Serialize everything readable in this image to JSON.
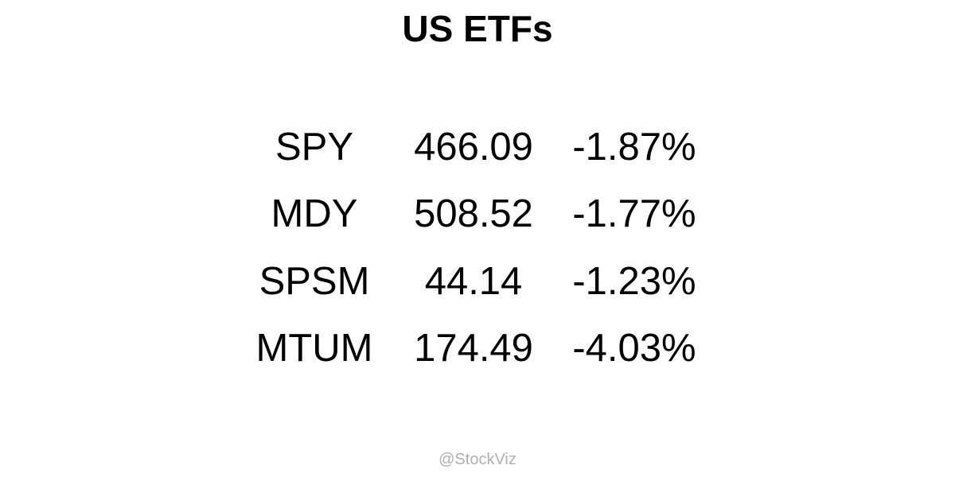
{
  "header": {
    "title": "US ETFs"
  },
  "table": {
    "rows": [
      [
        "SPY",
        "466.09",
        "-1.87%"
      ],
      [
        "MDY",
        "508.52",
        "-1.77%"
      ],
      [
        "SPSM",
        "44.14",
        "-1.23%"
      ],
      [
        "MTUM",
        "174.49",
        "-4.03%"
      ]
    ]
  },
  "footer": {
    "text": "@StockViz"
  }
}
